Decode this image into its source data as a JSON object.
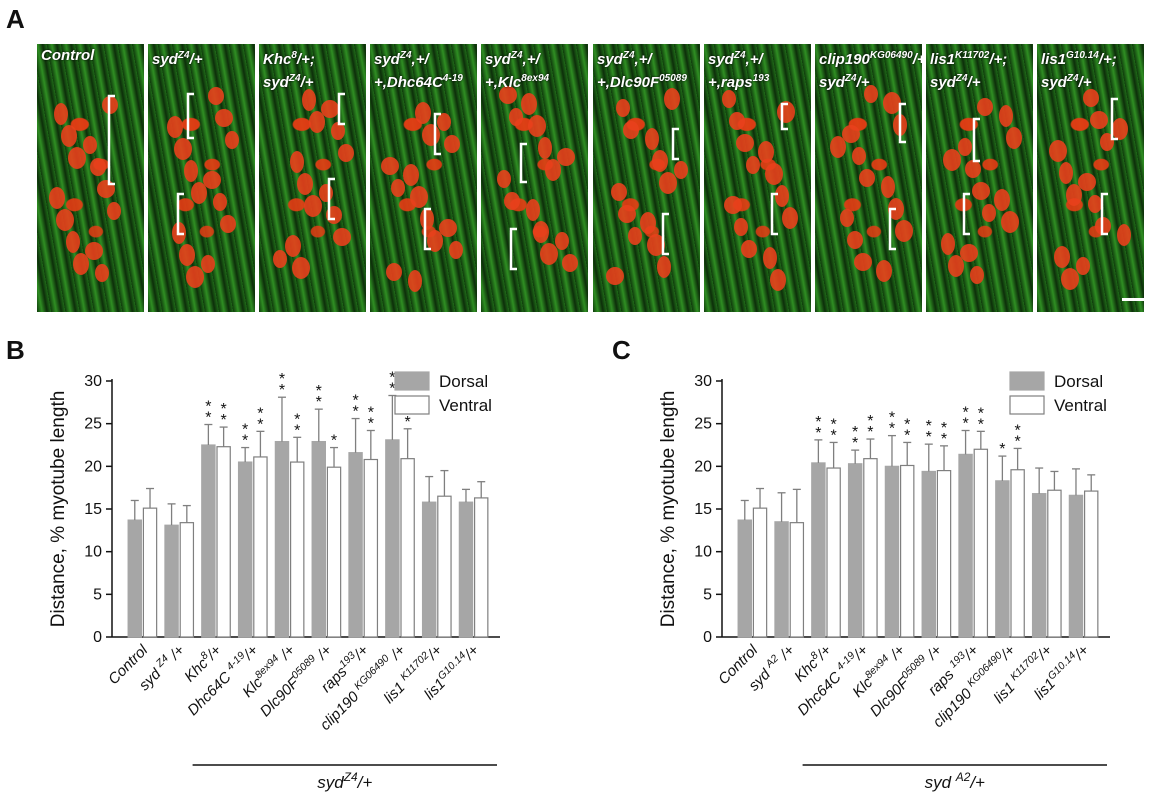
{
  "panels": {
    "a": "A",
    "b": "B",
    "c": "C"
  },
  "micrographs": [
    {
      "label": "Control"
    },
    {
      "label": "syd<sup>Z4</sup>/+"
    },
    {
      "label": "Khc<sup>8</sup>/+;\nsyd<sup>Z4</sup>/+"
    },
    {
      "label": "syd<sup>Z4</sup>,+/\n+,Dhc64C<sup>4-19</sup>"
    },
    {
      "label": "syd<sup>Z4</sup>,+/\n+,Klc<sup>8ex94</sup>"
    },
    {
      "label": "syd<sup>Z4</sup>,+/\n+,Dlc90F<sup>05089</sup>"
    },
    {
      "label": "syd<sup>Z4</sup>,+/\n+,raps<sup>193</sup>"
    },
    {
      "label": "clip190<sup>KG06490</sup>/+\nsyd<sup>Z4</sup>/+"
    },
    {
      "label": "lis1<sup>K11702</sup>/+;\nsyd<sup>Z4</sup>/+"
    },
    {
      "label": "lis1<sup>G10.14</sup>/+;\nsyd<sup>Z4</sup>/+"
    }
  ],
  "colors": {
    "dorsal": "#a6a6a6",
    "ventral": "#ffffff",
    "outline": "#7f7f7f",
    "nuclei": "#e8401c",
    "actin": "#2e8b22"
  },
  "chart_data": [
    {
      "type": "bar",
      "panel": "B",
      "ylabel": "Distance, % myotube length",
      "ylim": [
        0,
        30
      ],
      "yticks": [
        "0",
        "5",
        "10",
        "15",
        "20",
        "25",
        "30"
      ],
      "categories": [
        "Control",
        "syd <sup>Z4</sup> /+",
        "Khc<sup>8</sup>/+",
        "Dhc64C <sup>4-19</sup>/+",
        "Klc<sup>8ex94</sup> /+",
        "Dlc90F<sup>05089</sup> /+",
        "raps<sup>193</sup>/+",
        "clip190 <sup>KG06490</sup> /+",
        "lis1 <sup>K11702</sup>/+",
        "lis1<sup>G10.14</sup>/+"
      ],
      "group_label": "syd<sup>Z4</sup>/+",
      "group_range": [
        2,
        9
      ],
      "series": [
        {
          "name": "Dorsal",
          "values": [
            13.7,
            13.1,
            22.5,
            20.5,
            22.9,
            22.9,
            21.6,
            23.1,
            15.8,
            15.8
          ],
          "errors": [
            2.3,
            2.5,
            2.4,
            1.7,
            5.2,
            3.8,
            4.0,
            5.2,
            3.0,
            1.5
          ],
          "stars": [
            "",
            "",
            "**",
            "**",
            "**",
            "**",
            "**",
            "**",
            "",
            ""
          ]
        },
        {
          "name": "Ventral",
          "values": [
            15.1,
            13.4,
            22.3,
            21.1,
            20.5,
            19.9,
            20.8,
            20.9,
            16.5,
            16.3
          ],
          "errors": [
            2.3,
            2.0,
            2.3,
            3.0,
            2.9,
            2.3,
            3.4,
            3.5,
            3.0,
            1.9
          ],
          "stars": [
            "",
            "",
            "**",
            "**",
            "**",
            "*",
            "**",
            "**",
            "",
            ""
          ]
        }
      ],
      "legend": {
        "position": "top-right",
        "entries": [
          "Dorsal",
          "Ventral"
        ]
      }
    },
    {
      "type": "bar",
      "panel": "C",
      "ylabel": "Distance, % myotube length",
      "ylim": [
        0,
        30
      ],
      "yticks": [
        "0",
        "5",
        "10",
        "15",
        "20",
        "25",
        "30"
      ],
      "categories": [
        "Control",
        "syd <sup>A2</sup> /+",
        "Khc<sup>8</sup>/+",
        "Dhc64C <sup>4-19</sup>/+",
        "Klc<sup>8ex94</sup> /+",
        "Dlc90F<sup>05089</sup> /+",
        "raps <sup>193</sup>/+",
        "clip190 <sup>KG06490</sup>/+",
        "lis1 <sup>K11702</sup>/+",
        "lis1<sup>G10.14</sup>/+"
      ],
      "group_label": "syd <sup>A2</sup>/+",
      "group_range": [
        2,
        9
      ],
      "series": [
        {
          "name": "Dorsal",
          "values": [
            13.7,
            13.5,
            20.4,
            20.3,
            20.0,
            19.4,
            21.4,
            18.3,
            16.8,
            16.6
          ],
          "errors": [
            2.3,
            3.4,
            2.7,
            1.6,
            3.6,
            3.2,
            2.8,
            2.9,
            3.0,
            3.1
          ],
          "stars": [
            "",
            "",
            "**",
            "**",
            "**",
            "**",
            "**",
            "*",
            "",
            ""
          ]
        },
        {
          "name": "Ventral",
          "values": [
            15.1,
            13.4,
            19.8,
            20.9,
            20.1,
            19.5,
            22.0,
            19.6,
            17.2,
            17.1
          ],
          "errors": [
            2.3,
            3.9,
            3.0,
            2.3,
            2.7,
            2.9,
            2.1,
            2.5,
            2.2,
            1.9
          ],
          "stars": [
            "",
            "",
            "**",
            "**",
            "**",
            "**",
            "**",
            "**",
            "",
            ""
          ]
        }
      ],
      "legend": {
        "position": "top-right",
        "entries": [
          "Dorsal",
          "Ventral"
        ]
      }
    }
  ]
}
